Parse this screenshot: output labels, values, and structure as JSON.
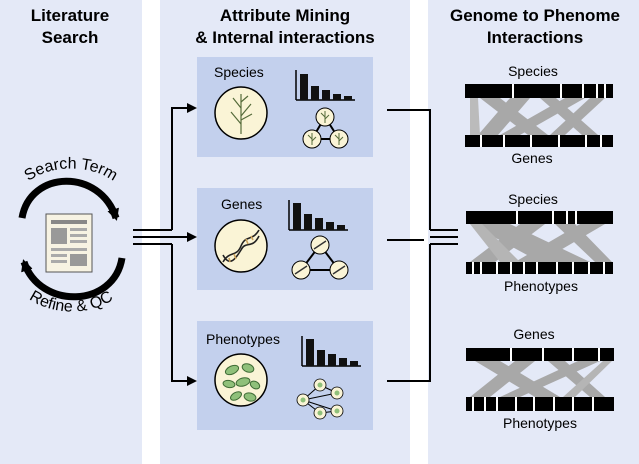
{
  "columns": {
    "literature": {
      "title_line1": "Literature",
      "title_line2": "Search",
      "loop_top": "Search Term",
      "loop_bottom": "Refine & QC"
    },
    "mining": {
      "title_line1": "Attribute Mining",
      "title_line2": "& Internal interactions",
      "boxes": [
        "Species",
        "Genes",
        "Phenotypes"
      ]
    },
    "genome": {
      "title_line1": "Genome to Phenome",
      "title_line2": "Interactions",
      "pairs": [
        {
          "top": "Species",
          "bottom": "Genes"
        },
        {
          "top": "Species",
          "bottom": "Phenotypes"
        },
        {
          "top": "Genes",
          "bottom": "Phenotypes"
        }
      ]
    }
  },
  "colors": {
    "panel_bg": "#e4e9f7",
    "box_bg": "#c3d0ed",
    "circle_fill": "#faf4d6",
    "link_gray": "#a8a8a8",
    "leaf_green": "#8fc07a",
    "leaf_dark": "#3e6b35"
  }
}
